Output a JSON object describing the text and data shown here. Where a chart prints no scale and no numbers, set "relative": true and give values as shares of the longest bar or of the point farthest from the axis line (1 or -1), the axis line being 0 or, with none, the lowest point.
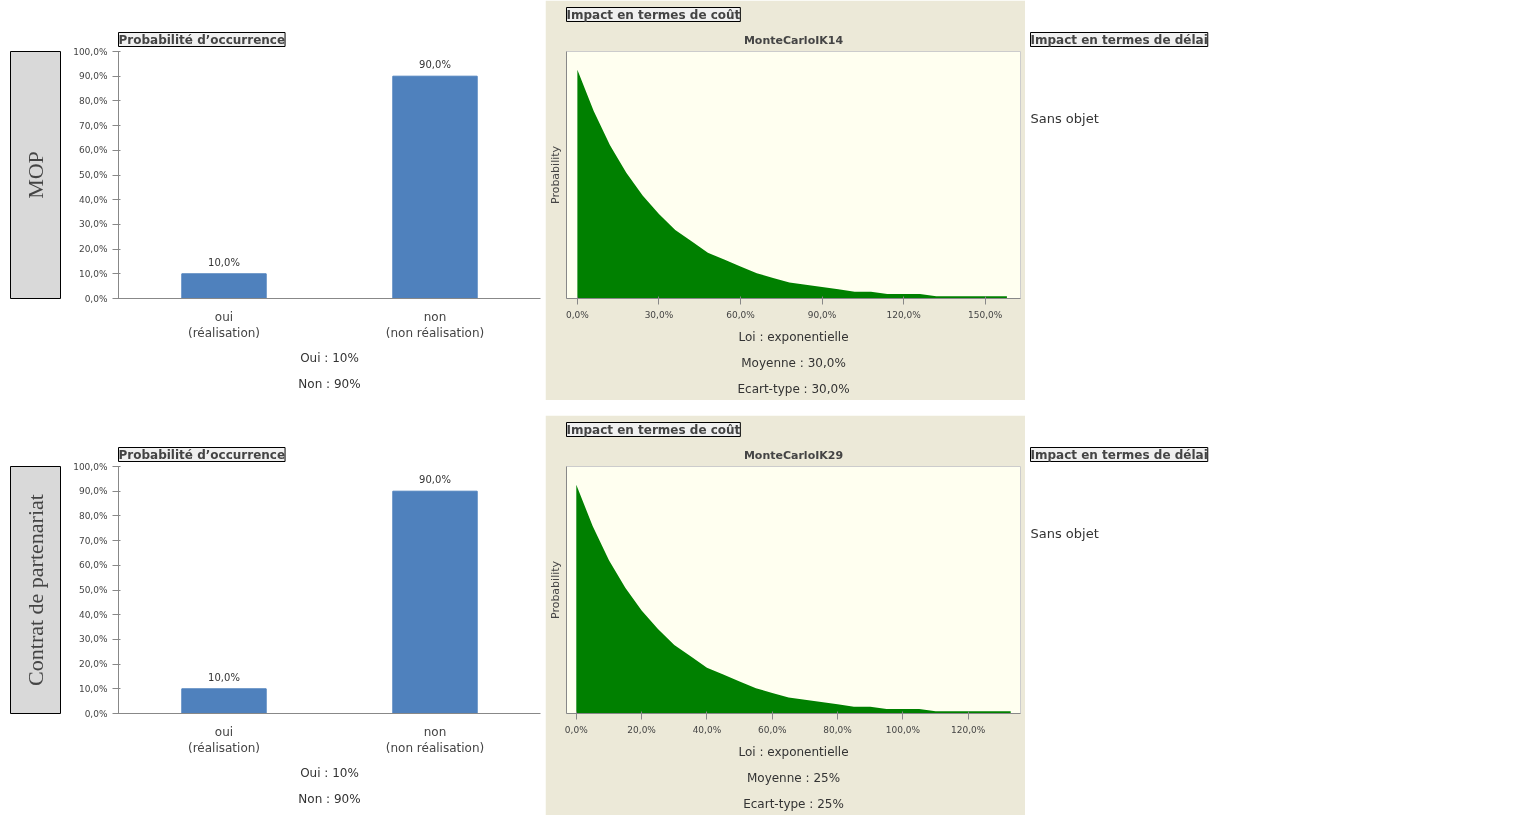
{
  "chart_data": [
    {
      "type": "other",
      "annotations": [
        "MOP"
      ]
    },
    {
      "type": "bar",
      "title": "Probabilité d’occurrence",
      "categories": [
        "oui\n(réalisation)",
        "non\n(non réalisation)"
      ],
      "values": [
        10,
        90
      ],
      "color": "#4f81bd",
      "value_labels": [
        "10,0%",
        "90,0%"
      ],
      "ylim": [
        0,
        100
      ],
      "yticks": [
        {
          "value": 0,
          "label": "0,0%"
        },
        {
          "value": 10,
          "label": "10,0%"
        },
        {
          "value": 20,
          "label": "20,0%"
        },
        {
          "value": 30,
          "label": "30,0%"
        },
        {
          "value": 40,
          "label": "40,0%"
        },
        {
          "value": 50,
          "label": "50,0%"
        },
        {
          "value": 60,
          "label": "60,0%"
        },
        {
          "value": 70,
          "label": "70,0%"
        },
        {
          "value": 80,
          "label": "80,0%"
        },
        {
          "value": 90,
          "label": "90,0%"
        },
        {
          "value": 100,
          "label": "100,0%"
        }
      ],
      "annotations": [
        "Oui : 10%",
        "Non : 90%"
      ]
    },
    {
      "type": "area",
      "title": "Impact en termes de coût",
      "subtitle": "MonteCarloIK14",
      "ylabel": "Probability",
      "relative": true,
      "color": "#008000",
      "x": [
        0,
        6,
        12,
        18,
        24,
        30,
        36,
        42,
        48,
        54,
        60,
        66,
        72,
        78,
        84,
        90,
        96,
        102,
        108,
        114,
        120,
        126,
        132,
        138,
        144,
        150,
        158
      ],
      "values": [
        1,
        0.82,
        0.67,
        0.55,
        0.45,
        0.37,
        0.3,
        0.25,
        0.2,
        0.17,
        0.14,
        0.11,
        0.09,
        0.07,
        0.06,
        0.05,
        0.04,
        0.03,
        0.03,
        0.02,
        0.02,
        0.02,
        0.01,
        0.01,
        0.01,
        0.01,
        0.01
      ],
      "xlim": [
        -4,
        163
      ],
      "xticks": [
        {
          "value": 0,
          "label": "0,0%"
        },
        {
          "value": 30,
          "label": "30,0%"
        },
        {
          "value": 60,
          "label": "60,0%"
        },
        {
          "value": 90,
          "label": "90,0%"
        },
        {
          "value": 120,
          "label": "120,0%"
        },
        {
          "value": 150,
          "label": "150,0%"
        }
      ],
      "annotations": [
        "Loi : exponentielle",
        "Moyenne : 30,0%",
        "Ecart-type : 30,0%"
      ]
    },
    {
      "type": "other",
      "title": "Impact en termes de délai",
      "annotations": [
        "Sans objet"
      ]
    },
    {
      "type": "other",
      "annotations": [
        "Contrat de partenariat"
      ]
    },
    {
      "type": "bar",
      "title": "Probabilité d’occurrence",
      "categories": [
        "oui\n(réalisation)",
        "non\n(non réalisation)"
      ],
      "values": [
        10,
        90
      ],
      "color": "#4f81bd",
      "value_labels": [
        "10,0%",
        "90,0%"
      ],
      "ylim": [
        0,
        100
      ],
      "yticks": [
        {
          "value": 0,
          "label": "0,0%"
        },
        {
          "value": 10,
          "label": "10,0%"
        },
        {
          "value": 20,
          "label": "20,0%"
        },
        {
          "value": 30,
          "label": "30,0%"
        },
        {
          "value": 40,
          "label": "40,0%"
        },
        {
          "value": 50,
          "label": "50,0%"
        },
        {
          "value": 60,
          "label": "60,0%"
        },
        {
          "value": 70,
          "label": "70,0%"
        },
        {
          "value": 80,
          "label": "80,0%"
        },
        {
          "value": 90,
          "label": "90,0%"
        },
        {
          "value": 100,
          "label": "100,0%"
        }
      ],
      "annotations": [
        "Oui : 10%",
        "Non : 90%"
      ]
    },
    {
      "type": "area",
      "title": "Impact en termes de coût",
      "subtitle": "MonteCarloIK29",
      "ylabel": "Probability",
      "relative": true,
      "color": "#008000",
      "x": [
        0,
        5,
        10,
        15,
        20,
        25,
        30,
        35,
        40,
        45,
        50,
        55,
        60,
        65,
        70,
        75,
        80,
        85,
        90,
        95,
        100,
        105,
        110,
        115,
        120,
        125,
        133
      ],
      "values": [
        1,
        0.82,
        0.67,
        0.55,
        0.45,
        0.37,
        0.3,
        0.25,
        0.2,
        0.17,
        0.14,
        0.11,
        0.09,
        0.07,
        0.06,
        0.05,
        0.04,
        0.03,
        0.03,
        0.02,
        0.02,
        0.02,
        0.01,
        0.01,
        0.01,
        0.01,
        0.01
      ],
      "xlim": [
        -3,
        136
      ],
      "xticks": [
        {
          "value": 0,
          "label": "0,0%"
        },
        {
          "value": 20,
          "label": "20,0%"
        },
        {
          "value": 40,
          "label": "40,0%"
        },
        {
          "value": 60,
          "label": "60,0%"
        },
        {
          "value": 80,
          "label": "80,0%"
        },
        {
          "value": 100,
          "label": "100,0%"
        },
        {
          "value": 120,
          "label": "120,0%"
        }
      ],
      "annotations": [
        "Loi : exponentielle",
        "Moyenne : 25%",
        "Ecart-type : 25%"
      ]
    },
    {
      "type": "other",
      "title": "Impact en termes de délai",
      "annotations": [
        "Sans objet"
      ]
    }
  ]
}
